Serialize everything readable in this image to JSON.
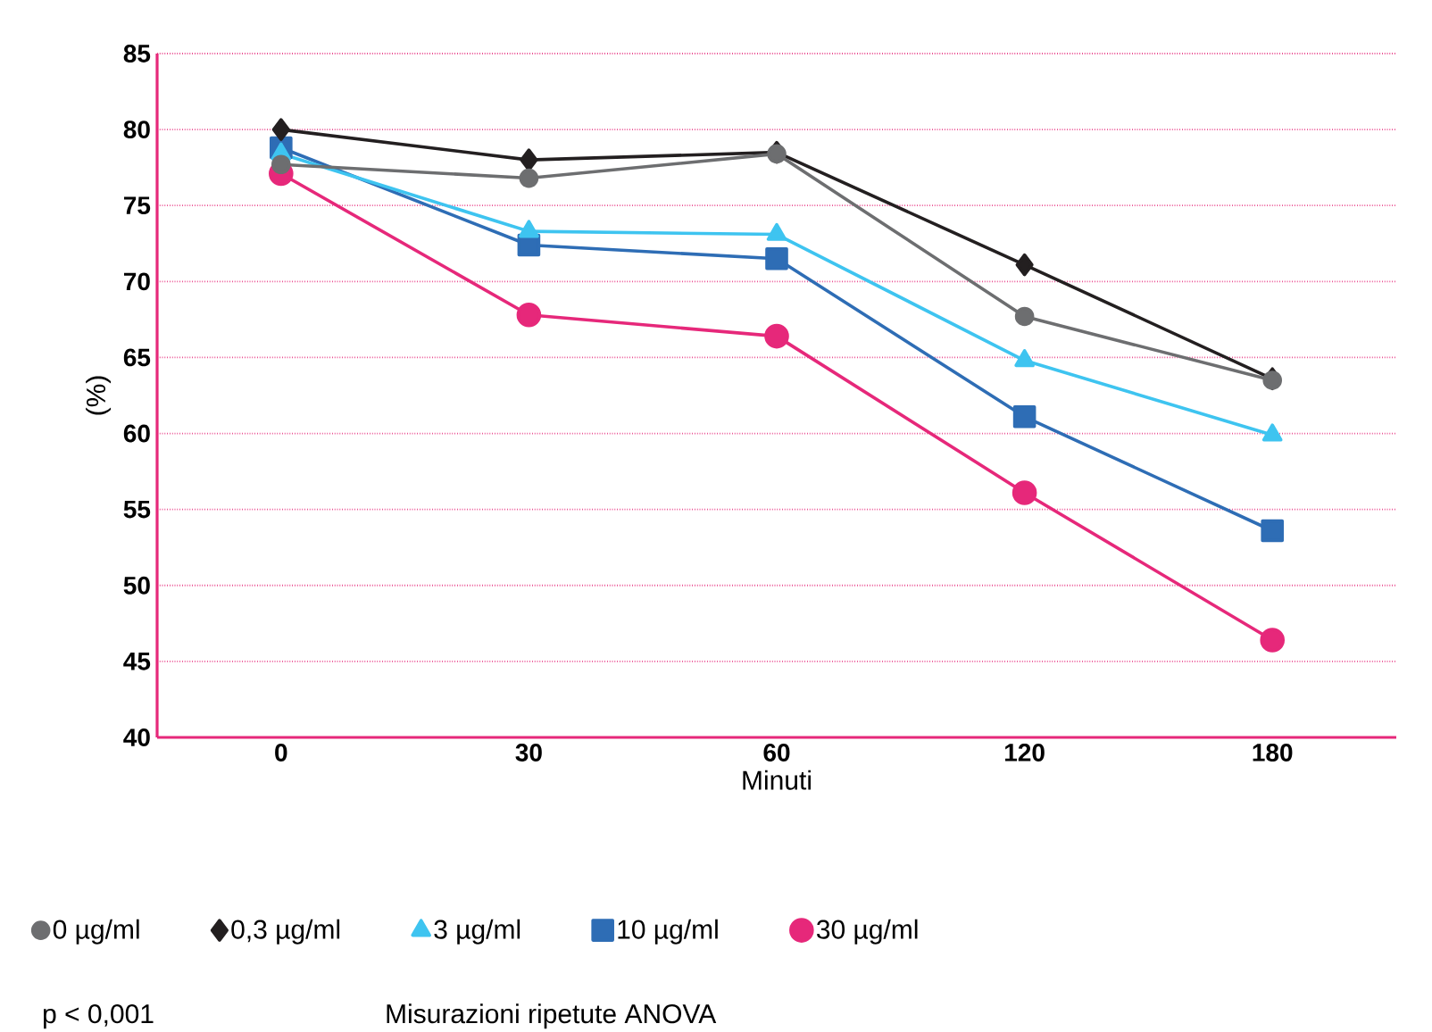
{
  "chart_data": {
    "type": "line",
    "xlabel": "Minuti",
    "ylabel": "(%)",
    "categories": [
      "0",
      "30",
      "60",
      "120",
      "180"
    ],
    "ylim": [
      40,
      85
    ],
    "yticks": [
      40,
      45,
      50,
      55,
      60,
      65,
      70,
      75,
      80,
      85
    ],
    "grid": "y",
    "legend": "bottom",
    "series": [
      {
        "name": "0 µg/ml",
        "color": "#6d6e70",
        "marker": "circle",
        "values": [
          77.7,
          76.8,
          78.4,
          67.7,
          63.5
        ]
      },
      {
        "name": "0,3 µg/ml",
        "color": "#231f20",
        "marker": "diamond",
        "values": [
          80.0,
          78.0,
          78.5,
          71.1,
          63.6
        ]
      },
      {
        "name": "3 µg/ml",
        "color": "#3ec4f0",
        "marker": "triangle",
        "values": [
          78.4,
          73.3,
          73.1,
          64.8,
          59.9
        ]
      },
      {
        "name": "10 µg/ml",
        "color": "#2e6db5",
        "marker": "square",
        "values": [
          78.8,
          72.4,
          71.5,
          61.1,
          53.6
        ]
      },
      {
        "name": "30 µg/ml",
        "color": "#e6287a",
        "marker": "circle",
        "values": [
          77.1,
          67.8,
          66.4,
          56.1,
          46.4
        ]
      }
    ],
    "annotations": [
      "p < 0,001",
      "Misurazioni ripetute ANOVA"
    ]
  }
}
